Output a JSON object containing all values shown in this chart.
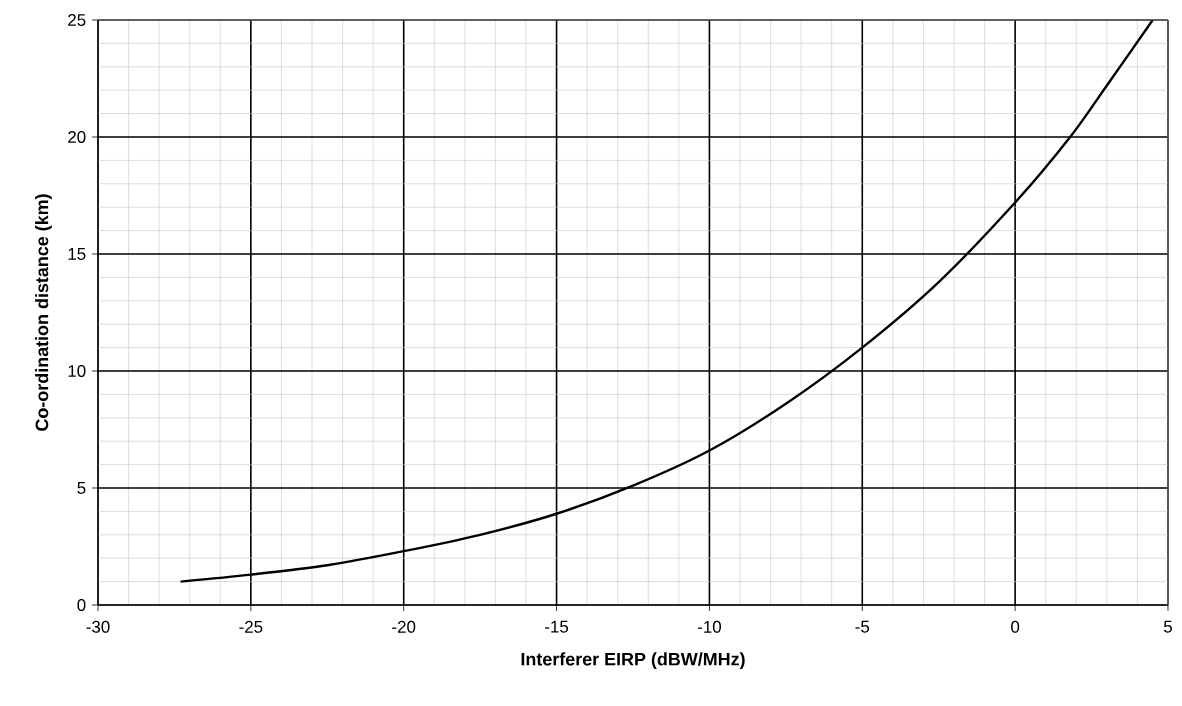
{
  "chart_data": {
    "type": "line",
    "xlabel": "Interferer EIRP (dBW/MHz)",
    "ylabel": "Co-ordination distance (km)",
    "xlim": [
      -30,
      5
    ],
    "xticks": [
      -30,
      -25,
      -20,
      -15,
      -10,
      -5,
      0,
      5
    ],
    "ylim": [
      0,
      25
    ],
    "yticks": [
      0,
      5,
      10,
      15,
      20,
      25
    ],
    "grid": true,
    "marker": "none",
    "line_style": "solid",
    "series": [
      {
        "color": "#000000",
        "x": [
          -27.3,
          -25,
          -22.5,
          -20,
          -17.5,
          -15,
          -12.5,
          -10,
          -7.5,
          -5,
          -2.5,
          0,
          1.8,
          3,
          4.5
        ],
        "values": [
          1.0,
          1.3,
          1.7,
          2.3,
          3.0,
          3.9,
          5.1,
          6.6,
          8.6,
          11.0,
          13.8,
          17.2,
          20,
          22.2,
          25
        ]
      }
    ]
  }
}
